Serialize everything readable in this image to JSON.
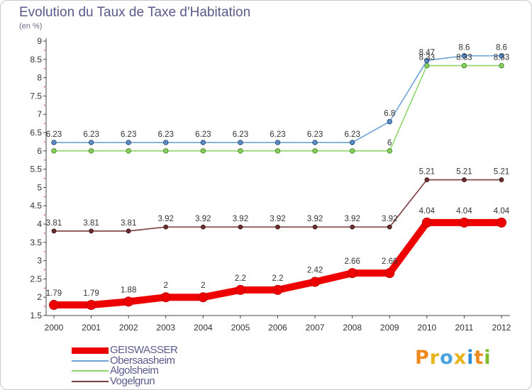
{
  "title": "Evolution du Taux de Taxe d'Habitation",
  "subtitle": "(en %)",
  "logo": {
    "text": "Proxiti",
    "letters": [
      "P",
      "r",
      "o",
      "x",
      "i",
      "t",
      "i"
    ],
    "colors": [
      "#f08a1c",
      "#e8b21a",
      "#4aa3df",
      "#e8b21a",
      "#2e8fd6",
      "#f08a1c",
      "#7dbb2a"
    ]
  },
  "chart_data": {
    "type": "line",
    "x": [
      "2000",
      "2001",
      "2002",
      "2003",
      "2004",
      "2005",
      "2006",
      "2007",
      "2008",
      "2009",
      "2010",
      "2011",
      "2012"
    ],
    "yticks": [
      "1.5",
      "2",
      "2.5",
      "3",
      "3.5",
      "4",
      "4.5",
      "5",
      "5.5",
      "6",
      "6.5",
      "7",
      "7.5",
      "8",
      "8.5",
      "9"
    ],
    "ylim": [
      1.5,
      9
    ],
    "grid": false,
    "legend_position": "bottom-left",
    "series": [
      {
        "name": "GEISWASSER",
        "color": "#ee0000",
        "values": [
          1.79,
          1.79,
          1.88,
          2,
          2,
          2.2,
          2.2,
          2.42,
          2.66,
          2.66,
          4.04,
          4.04,
          4.04
        ],
        "labels": [
          "1.79",
          "1.79",
          "1.88",
          "2",
          "2",
          "2.2",
          "2.2",
          "2.42",
          "2.66",
          "2.66",
          "4.04",
          "4.04",
          "4.04"
        ]
      },
      {
        "name": "Obersaasheim",
        "color": "#6fa3d6",
        "values": [
          6.23,
          6.23,
          6.23,
          6.23,
          6.23,
          6.23,
          6.23,
          6.23,
          6.23,
          6.8,
          8.47,
          8.6,
          8.6
        ],
        "labels": [
          "6.23",
          "6.23",
          "6.23",
          "6.23",
          "6.23",
          "6.23",
          "6.23",
          "6.23",
          "6.23",
          "6.8",
          "8.47",
          "8.6",
          "8.6"
        ]
      },
      {
        "name": "Algolsheim",
        "color": "#8fd66a",
        "values": [
          6,
          6,
          6,
          6,
          6,
          6,
          6,
          6,
          6,
          6,
          8.33,
          8.33,
          8.33
        ],
        "labels": [
          "",
          "",
          "",
          "",
          "",
          "",
          "",
          "",
          "",
          "6",
          "8.33",
          "8.33",
          "8.33"
        ]
      },
      {
        "name": "Vogelgrun",
        "color": "#7a3a3a",
        "values": [
          3.81,
          3.81,
          3.81,
          3.92,
          3.92,
          3.92,
          3.92,
          3.92,
          3.92,
          3.92,
          5.21,
          5.21,
          5.21
        ],
        "labels": [
          "3.81",
          "3.81",
          "3.81",
          "3.92",
          "3.92",
          "3.92",
          "3.92",
          "3.92",
          "3.92",
          "3.92",
          "5.21",
          "5.21",
          "5.21"
        ]
      }
    ]
  }
}
